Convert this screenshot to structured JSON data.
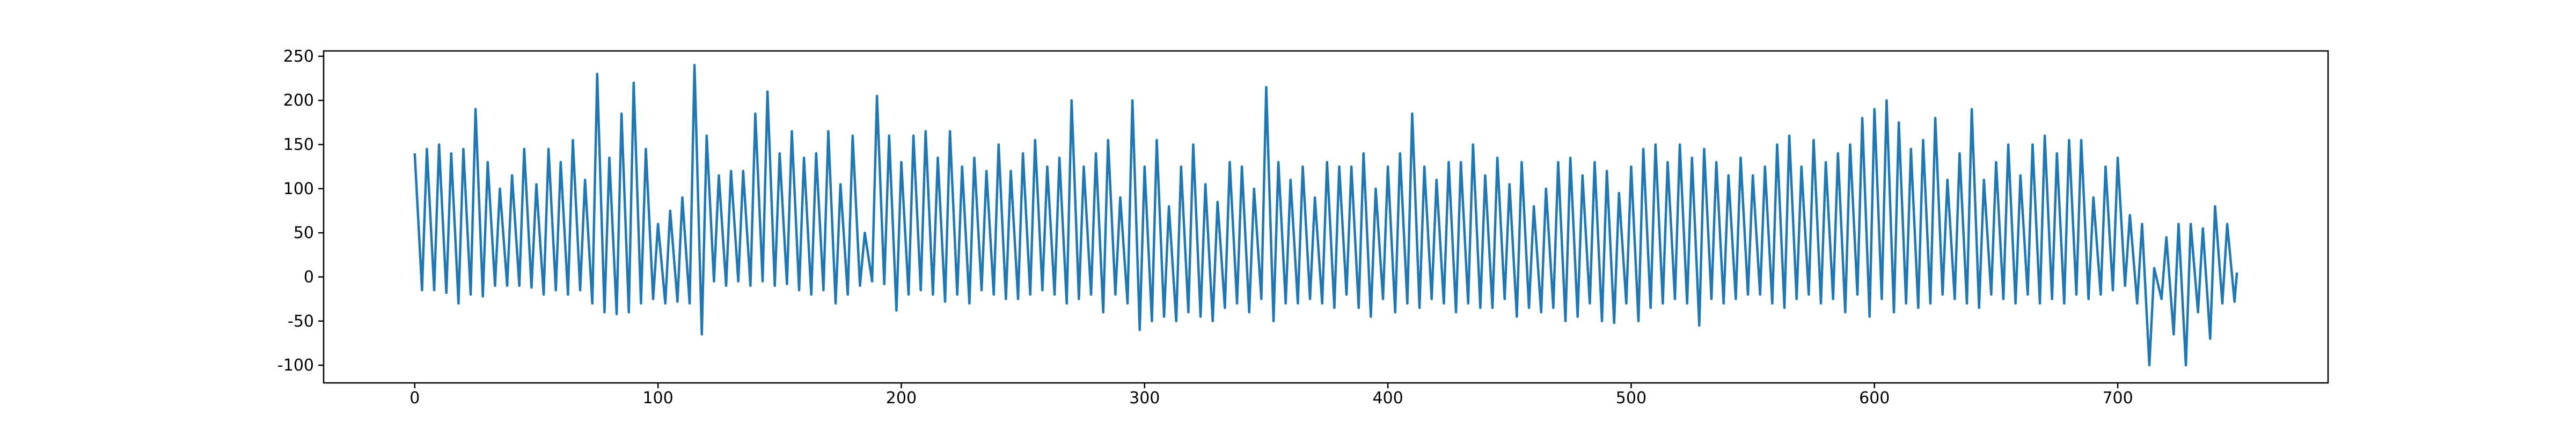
{
  "chart_data": {
    "type": "line",
    "color": "#1f77b4",
    "grid": false,
    "xlim": [
      -37.45,
      786.45
    ],
    "ylim": [
      -120,
      256
    ],
    "xticks": [
      0,
      100,
      200,
      300,
      400,
      500,
      600,
      700
    ],
    "yticks": [
      -100,
      -50,
      0,
      50,
      100,
      150,
      200,
      250
    ],
    "x": [
      0,
      3,
      5,
      8,
      10,
      13,
      15,
      18,
      20,
      23,
      25,
      28,
      30,
      33,
      35,
      38,
      40,
      43,
      45,
      48,
      50,
      53,
      55,
      58,
      60,
      63,
      65,
      68,
      70,
      73,
      75,
      78,
      80,
      83,
      85,
      88,
      90,
      93,
      95,
      98,
      100,
      103,
      105,
      108,
      110,
      113,
      115,
      118,
      120,
      123,
      125,
      128,
      130,
      133,
      135,
      138,
      140,
      143,
      145,
      148,
      150,
      153,
      155,
      158,
      160,
      163,
      165,
      168,
      170,
      173,
      175,
      178,
      180,
      183,
      185,
      188,
      190,
      193,
      195,
      198,
      200,
      203,
      205,
      208,
      210,
      213,
      215,
      218,
      220,
      223,
      225,
      228,
      230,
      233,
      235,
      238,
      240,
      243,
      245,
      248,
      250,
      253,
      255,
      258,
      260,
      263,
      265,
      268,
      270,
      273,
      275,
      278,
      280,
      283,
      285,
      288,
      290,
      293,
      295,
      298,
      300,
      303,
      305,
      308,
      310,
      313,
      315,
      318,
      320,
      323,
      325,
      328,
      330,
      333,
      335,
      338,
      340,
      343,
      345,
      348,
      350,
      353,
      355,
      358,
      360,
      363,
      365,
      368,
      370,
      373,
      375,
      378,
      380,
      383,
      385,
      388,
      390,
      393,
      395,
      398,
      400,
      403,
      405,
      408,
      410,
      413,
      415,
      418,
      420,
      423,
      425,
      428,
      430,
      433,
      435,
      438,
      440,
      443,
      445,
      448,
      450,
      453,
      455,
      458,
      460,
      463,
      465,
      468,
      470,
      473,
      475,
      478,
      480,
      483,
      485,
      488,
      490,
      493,
      495,
      498,
      500,
      503,
      505,
      508,
      510,
      513,
      515,
      518,
      520,
      523,
      525,
      528,
      530,
      533,
      535,
      538,
      540,
      543,
      545,
      548,
      550,
      553,
      555,
      558,
      560,
      563,
      565,
      568,
      570,
      573,
      575,
      578,
      580,
      583,
      585,
      588,
      590,
      593,
      595,
      598,
      600,
      603,
      605,
      608,
      610,
      613,
      615,
      618,
      620,
      623,
      625,
      628,
      630,
      633,
      635,
      638,
      640,
      643,
      645,
      648,
      650,
      653,
      655,
      658,
      660,
      663,
      665,
      668,
      670,
      673,
      675,
      678,
      680,
      683,
      685,
      688,
      690,
      693,
      695,
      698,
      700,
      703,
      705,
      708,
      710,
      713,
      715,
      718,
      720,
      723,
      725,
      728,
      730,
      733,
      735,
      738,
      740,
      743,
      745,
      748,
      749
    ],
    "values": [
      140,
      -15,
      145,
      -15,
      150,
      -18,
      140,
      -30,
      145,
      -20,
      190,
      -22,
      130,
      -10,
      100,
      -10,
      115,
      -10,
      145,
      -12,
      105,
      -20,
      145,
      -15,
      130,
      -20,
      155,
      -15,
      110,
      -30,
      230,
      -40,
      135,
      -42,
      185,
      -40,
      220,
      -30,
      145,
      -25,
      60,
      -30,
      75,
      -28,
      90,
      -30,
      240,
      -65,
      160,
      -5,
      115,
      -10,
      120,
      -5,
      120,
      -10,
      185,
      -5,
      210,
      -10,
      140,
      -8,
      165,
      -15,
      135,
      -20,
      140,
      -15,
      165,
      -30,
      105,
      -20,
      160,
      -10,
      50,
      -5,
      205,
      -8,
      160,
      -38,
      130,
      -20,
      160,
      -15,
      165,
      -20,
      135,
      -28,
      165,
      -20,
      125,
      -30,
      135,
      -15,
      120,
      -20,
      150,
      -25,
      120,
      -25,
      140,
      -20,
      155,
      -15,
      125,
      -20,
      135,
      -30,
      200,
      -25,
      125,
      -20,
      140,
      -40,
      155,
      -20,
      90,
      -30,
      200,
      -60,
      125,
      -50,
      155,
      -45,
      80,
      -50,
      125,
      -40,
      150,
      -45,
      105,
      -50,
      85,
      -35,
      130,
      -30,
      125,
      -40,
      100,
      -25,
      215,
      -50,
      130,
      -30,
      110,
      -30,
      125,
      -25,
      90,
      -30,
      130,
      -35,
      125,
      -20,
      125,
      -35,
      140,
      -45,
      100,
      -25,
      125,
      -40,
      140,
      -30,
      185,
      -35,
      125,
      -25,
      110,
      -30,
      130,
      -40,
      130,
      -30,
      150,
      -35,
      115,
      -35,
      135,
      -25,
      105,
      -45,
      130,
      -35,
      80,
      -40,
      100,
      -35,
      130,
      -50,
      135,
      -45,
      115,
      -30,
      130,
      -50,
      120,
      -52,
      95,
      -30,
      125,
      -50,
      145,
      -35,
      150,
      -30,
      130,
      -25,
      150,
      -30,
      135,
      -55,
      145,
      -25,
      130,
      -30,
      115,
      -25,
      135,
      -20,
      115,
      -20,
      125,
      -30,
      150,
      -35,
      160,
      -25,
      125,
      -20,
      155,
      -30,
      130,
      -25,
      140,
      -40,
      150,
      -20,
      180,
      -45,
      190,
      -25,
      200,
      -40,
      175,
      -30,
      145,
      -35,
      155,
      -30,
      180,
      -20,
      110,
      -25,
      140,
      -30,
      190,
      -35,
      110,
      -20,
      130,
      -25,
      150,
      -30,
      115,
      -20,
      150,
      -30,
      160,
      -25,
      140,
      -30,
      155,
      -20,
      155,
      -25,
      90,
      -20,
      125,
      -15,
      135,
      -10,
      70,
      -30,
      60,
      -100,
      10,
      -25,
      45,
      -65,
      60,
      -100,
      60,
      -40,
      55,
      -70,
      80,
      -30,
      60,
      -28,
      5
    ]
  }
}
